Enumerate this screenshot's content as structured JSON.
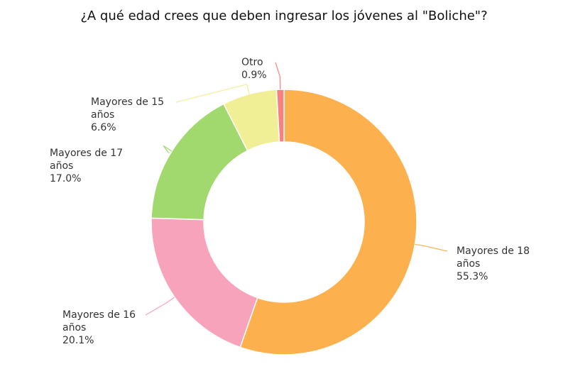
{
  "chart_data": {
    "type": "pie",
    "variant": "donut",
    "title": "¿A qué edad crees que deben ingresar los jóvenes al \"Boliche\"?",
    "slices": [
      {
        "label": [
          "Mayores de 18",
          "años"
        ],
        "percent_label": "55.3%",
        "value": 55.3,
        "color": "#fdb04e"
      },
      {
        "label": [
          "Mayores de 16",
          "años"
        ],
        "percent_label": "20.1%",
        "value": 20.1,
        "color": "#f8a3bc"
      },
      {
        "label": [
          "Mayores de 17",
          "años"
        ],
        "percent_label": "17.0%",
        "value": 17.0,
        "color": "#a1d96f"
      },
      {
        "label": [
          "Mayores de 15",
          "años"
        ],
        "percent_label": "6.6%",
        "value": 6.6,
        "color": "#f1ef96"
      },
      {
        "label": [
          "Otro"
        ],
        "percent_label": "0.9%",
        "value": 0.9,
        "color": "#f8807e"
      }
    ],
    "start": "top, clockwise",
    "legend": "none (direct labels with leader lines)"
  }
}
